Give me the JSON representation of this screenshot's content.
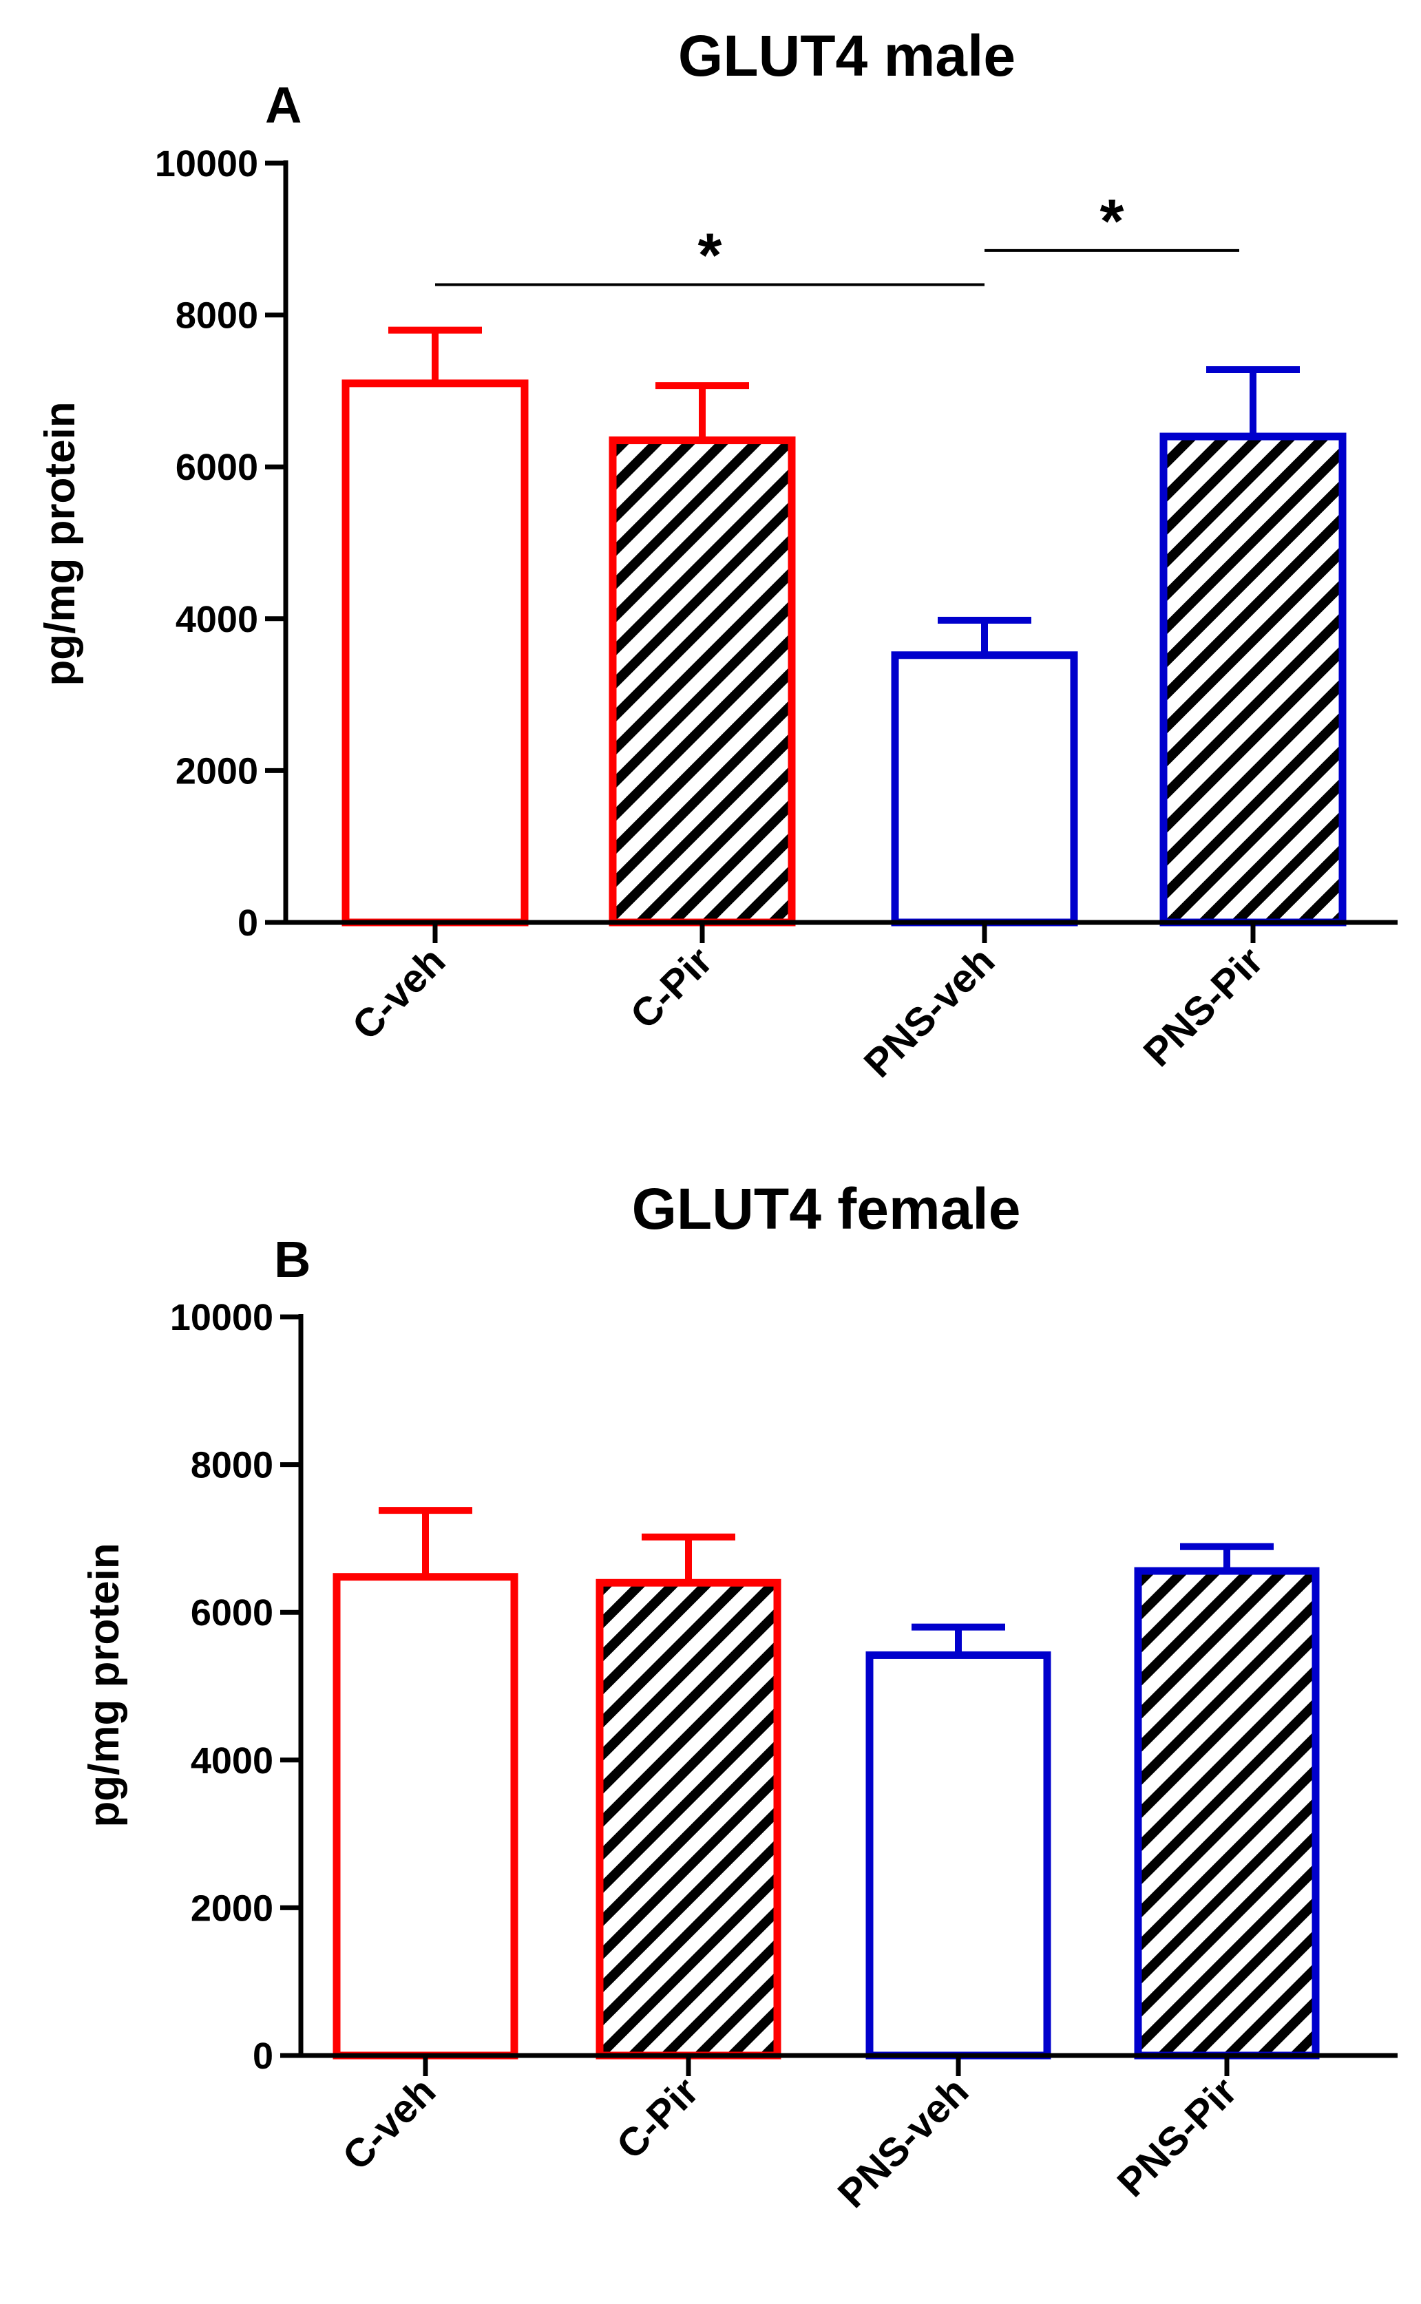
{
  "colors": {
    "C": "#ff0000",
    "PNS": "#0000cc",
    "axis": "#000000",
    "hatch": "#000000"
  },
  "chart_data": [
    {
      "type": "bar",
      "panel": "A",
      "title": "GLUT4 male",
      "xlabel": "",
      "ylabel": "pg/mg protein",
      "ylim": [
        0,
        10000
      ],
      "yticks": [
        "0",
        "2000",
        "4000",
        "6000",
        "8000",
        "10000"
      ],
      "categories": [
        "C-veh",
        "C-Pir",
        "PNS-veh",
        "PNS-Pir"
      ],
      "values": [
        7100,
        6350,
        3520,
        6400
      ],
      "errors": [
        700,
        720,
        460,
        880
      ],
      "series_group": [
        "C",
        "C",
        "PNS",
        "PNS"
      ],
      "hatched": [
        false,
        true,
        false,
        true
      ],
      "significance": [
        {
          "from": 0,
          "to": 2,
          "level": 8400,
          "label": "*"
        },
        {
          "from": 2,
          "to": 3,
          "level": 8850,
          "label": "*"
        }
      ]
    },
    {
      "type": "bar",
      "panel": "B",
      "title": "GLUT4 female",
      "xlabel": "",
      "ylabel": "pg/mg protein",
      "ylim": [
        0,
        10000
      ],
      "yticks": [
        "0",
        "2000",
        "4000",
        "6000",
        "8000",
        "10000"
      ],
      "categories": [
        "C-veh",
        "C-Pir",
        "PNS-veh",
        "PNS-Pir"
      ],
      "values": [
        6480,
        6400,
        5420,
        6560
      ],
      "errors": [
        900,
        620,
        380,
        330
      ],
      "series_group": [
        "C",
        "C",
        "PNS",
        "PNS"
      ],
      "hatched": [
        false,
        true,
        false,
        true
      ],
      "significance": []
    }
  ]
}
